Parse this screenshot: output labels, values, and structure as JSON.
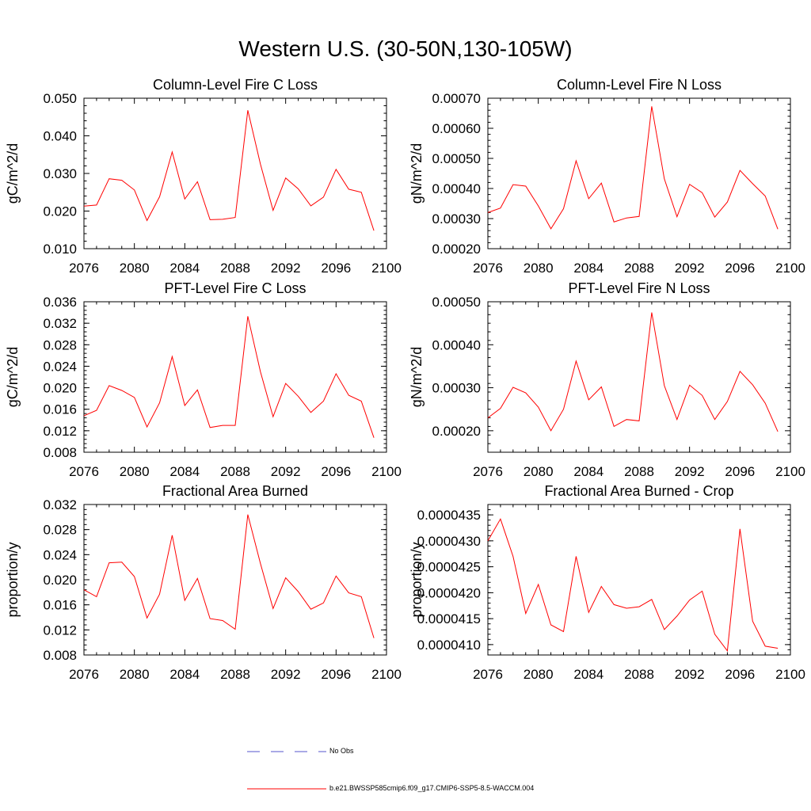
{
  "figure_title": "Western U.S. (30-50N,130-105W)",
  "colors": {
    "series": "#ff0000",
    "obs": "#5555cc",
    "axis": "#000000"
  },
  "legend": {
    "no_obs_label": "No Obs",
    "series_label": "b.e21.BWSSP585cmip6.f09_g17.CMIP6-SSP5-8.5-WACCM.004"
  },
  "chart_data": [
    {
      "type": "line",
      "title": "Column-Level Fire C Loss",
      "ylabel": "gC/m^2/d",
      "xlabel": "",
      "xlim": [
        2076,
        2100
      ],
      "ylim": [
        0.01,
        0.05
      ],
      "xticks": [
        "2076",
        "2080",
        "2084",
        "2088",
        "2092",
        "2096",
        "2100"
      ],
      "yticks": [
        "0.010",
        "0.020",
        "0.030",
        "0.040",
        "0.050"
      ],
      "series": [
        {
          "name": "b.e21.BWSSP585cmip6.f09_g17.CMIP6-SSP5-8.5-WACCM.004",
          "x": [
            2076,
            2077,
            2078,
            2079,
            2080,
            2081,
            2082,
            2083,
            2084,
            2085,
            2086,
            2087,
            2088,
            2089,
            2090,
            2091,
            2092,
            2093,
            2094,
            2095,
            2096,
            2097,
            2098,
            2099
          ],
          "values": [
            0.0213,
            0.0216,
            0.0286,
            0.0282,
            0.0256,
            0.0175,
            0.0238,
            0.0357,
            0.0232,
            0.0278,
            0.0177,
            0.0178,
            0.0183,
            0.0468,
            0.0325,
            0.0202,
            0.0288,
            0.0259,
            0.0214,
            0.0237,
            0.0311,
            0.0258,
            0.025,
            0.0148
          ]
        }
      ]
    },
    {
      "type": "line",
      "title": "Column-Level Fire N Loss",
      "ylabel": "gN/m^2/d",
      "xlabel": "",
      "xlim": [
        2076,
        2100
      ],
      "ylim": [
        0.0002,
        0.0007
      ],
      "xticks": [
        "2076",
        "2080",
        "2084",
        "2088",
        "2092",
        "2096",
        "2100"
      ],
      "yticks": [
        "0.00020",
        "0.00030",
        "0.00040",
        "0.00050",
        "0.00060",
        "0.00070"
      ],
      "series": [
        {
          "name": "b.e21.BWSSP585cmip6.f09_g17.CMIP6-SSP5-8.5-WACCM.004",
          "x": [
            2076,
            2077,
            2078,
            2079,
            2080,
            2081,
            2082,
            2083,
            2084,
            2085,
            2086,
            2087,
            2088,
            2089,
            2090,
            2091,
            2092,
            2093,
            2094,
            2095,
            2096,
            2097,
            2098,
            2099
          ],
          "values": [
            0.00032,
            0.000335,
            0.000413,
            0.000408,
            0.000342,
            0.000266,
            0.000333,
            0.000492,
            0.000366,
            0.000418,
            0.000289,
            0.000302,
            0.000307,
            0.000673,
            0.000432,
            0.000306,
            0.000414,
            0.000386,
            0.000305,
            0.000355,
            0.00046,
            0.000416,
            0.000375,
            0.000265
          ]
        }
      ]
    },
    {
      "type": "line",
      "title": "PFT-Level Fire C Loss",
      "ylabel": "gC/m^2/d",
      "xlabel": "",
      "xlim": [
        2076,
        2100
      ],
      "ylim": [
        0.008,
        0.036
      ],
      "xticks": [
        "2076",
        "2080",
        "2084",
        "2088",
        "2092",
        "2096",
        "2100"
      ],
      "yticks": [
        "0.008",
        "0.012",
        "0.016",
        "0.020",
        "0.024",
        "0.028",
        "0.032",
        "0.036"
      ],
      "series": [
        {
          "name": "b.e21.BWSSP585cmip6.f09_g17.CMIP6-SSP5-8.5-WACCM.004",
          "x": [
            2076,
            2077,
            2078,
            2079,
            2080,
            2081,
            2082,
            2083,
            2084,
            2085,
            2086,
            2087,
            2088,
            2089,
            2090,
            2091,
            2092,
            2093,
            2094,
            2095,
            2096,
            2097,
            2098,
            2099
          ],
          "values": [
            0.0148,
            0.0158,
            0.0204,
            0.0195,
            0.0182,
            0.0127,
            0.0172,
            0.0258,
            0.0167,
            0.0196,
            0.0126,
            0.013,
            0.013,
            0.0333,
            0.023,
            0.0146,
            0.0208,
            0.0184,
            0.0154,
            0.0175,
            0.0226,
            0.0186,
            0.0175,
            0.0107
          ]
        }
      ]
    },
    {
      "type": "line",
      "title": "PFT-Level Fire N Loss",
      "ylabel": "gN/m^2/d",
      "xlabel": "",
      "xlim": [
        2076,
        2100
      ],
      "ylim": [
        0.00015,
        0.0005
      ],
      "xticks": [
        "2076",
        "2080",
        "2084",
        "2088",
        "2092",
        "2096",
        "2100"
      ],
      "yticks": [
        "0.00020",
        "0.00030",
        "0.00040",
        "0.00050"
      ],
      "series": [
        {
          "name": "b.e21.BWSSP585cmip6.f09_g17.CMIP6-SSP5-8.5-WACCM.004",
          "x": [
            2076,
            2077,
            2078,
            2079,
            2080,
            2081,
            2082,
            2083,
            2084,
            2085,
            2086,
            2087,
            2088,
            2089,
            2090,
            2091,
            2092,
            2093,
            2094,
            2095,
            2096,
            2097,
            2098,
            2099
          ],
          "values": [
            0.00023,
            0.000252,
            0.000301,
            0.000288,
            0.000255,
            0.0002,
            0.00025,
            0.000362,
            0.000272,
            0.000302,
            0.00021,
            0.000226,
            0.000223,
            0.000475,
            0.000305,
            0.000226,
            0.000306,
            0.000282,
            0.000226,
            0.000268,
            0.000338,
            0.000307,
            0.000264,
            0.000198
          ]
        }
      ]
    },
    {
      "type": "line",
      "title": "Fractional Area Burned",
      "ylabel": "proportion/y",
      "xlabel": "",
      "xlim": [
        2076,
        2100
      ],
      "ylim": [
        0.008,
        0.032
      ],
      "xticks": [
        "2076",
        "2080",
        "2084",
        "2088",
        "2092",
        "2096",
        "2100"
      ],
      "yticks": [
        "0.008",
        "0.012",
        "0.016",
        "0.020",
        "0.024",
        "0.028",
        "0.032"
      ],
      "series": [
        {
          "name": "b.e21.BWSSP585cmip6.f09_g17.CMIP6-SSP5-8.5-WACCM.004",
          "x": [
            2076,
            2077,
            2078,
            2079,
            2080,
            2081,
            2082,
            2083,
            2084,
            2085,
            2086,
            2087,
            2088,
            2089,
            2090,
            2091,
            2092,
            2093,
            2094,
            2095,
            2096,
            2097,
            2098,
            2099
          ],
          "values": [
            0.0184,
            0.0173,
            0.0227,
            0.0228,
            0.0205,
            0.0139,
            0.0177,
            0.0271,
            0.0167,
            0.0202,
            0.0138,
            0.0135,
            0.0121,
            0.0304,
            0.0226,
            0.0154,
            0.0203,
            0.0181,
            0.0153,
            0.0163,
            0.0206,
            0.0179,
            0.0173,
            0.0107
          ]
        }
      ]
    },
    {
      "type": "line",
      "title": "Fractional Area Burned - Crop",
      "ylabel": "proportion/y",
      "xlabel": "",
      "xlim": [
        2076,
        2100
      ],
      "ylim": [
        4.08e-05,
        4.37e-05
      ],
      "xticks": [
        "2076",
        "2080",
        "2084",
        "2088",
        "2092",
        "2096",
        "2100"
      ],
      "yticks": [
        "0.0000410",
        "0.0000415",
        "0.0000420",
        "0.0000425",
        "0.0000430",
        "0.0000435"
      ],
      "series": [
        {
          "name": "b.e21.BWSSP585cmip6.f09_g17.CMIP6-SSP5-8.5-WACCM.004",
          "x": [
            2076,
            2077,
            2078,
            2079,
            2080,
            2081,
            2082,
            2083,
            2084,
            2085,
            2086,
            2087,
            2088,
            2089,
            2090,
            2091,
            2092,
            2093,
            2094,
            2095,
            2096,
            2097,
            2098,
            2099
          ],
          "values": [
            4.3e-05,
            4.342e-05,
            4.27e-05,
            4.16e-05,
            4.216e-05,
            4.138e-05,
            4.125e-05,
            4.27e-05,
            4.162e-05,
            4.212e-05,
            4.177e-05,
            4.17e-05,
            4.173e-05,
            4.187e-05,
            4.129e-05,
            4.155e-05,
            4.186e-05,
            4.203e-05,
            4.12e-05,
            4.088e-05,
            4.323e-05,
            4.145e-05,
            4.097e-05,
            4.093e-05
          ]
        }
      ]
    }
  ]
}
